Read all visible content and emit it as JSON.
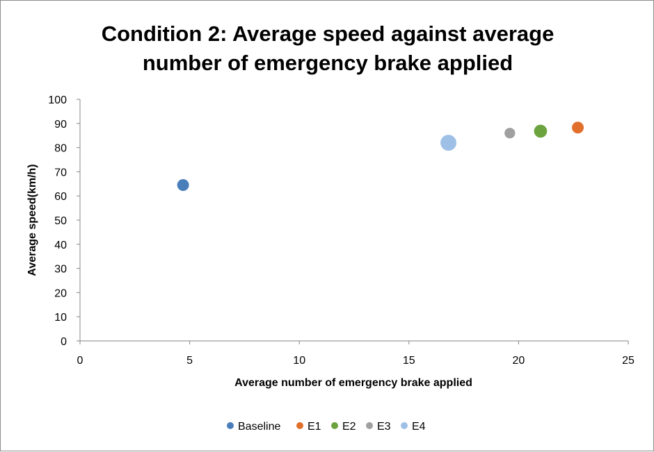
{
  "chart_data": {
    "type": "scatter",
    "title_lines": [
      "Condition 2: Average speed against average",
      "number of emergency brake applied"
    ],
    "xlabel": "Average number of emergency brake applied",
    "ylabel": "Average speed(km/h)",
    "xlim": [
      0,
      25
    ],
    "ylim": [
      0,
      100
    ],
    "x_ticks": [
      "0",
      "5",
      "10",
      "15",
      "20",
      "25"
    ],
    "y_ticks": [
      "0",
      "10",
      "20",
      "30",
      "40",
      "50",
      "60",
      "70",
      "80",
      "90",
      "100"
    ],
    "grid": false,
    "legend_position": "bottom",
    "series": [
      {
        "name": "Baseline",
        "color": "#4a7ebb",
        "x": 4.7,
        "y": 64.5,
        "marker_size": 1.0
      },
      {
        "name": "E1",
        "color": "#e1702d",
        "x": 22.7,
        "y": 88.3,
        "marker_size": 1.0
      },
      {
        "name": "E2",
        "color": "#6ca33e",
        "x": 21.0,
        "y": 86.8,
        "marker_size": 1.1
      },
      {
        "name": "E3",
        "color": "#a0a0a0",
        "x": 19.6,
        "y": 86.0,
        "marker_size": 0.9
      },
      {
        "name": "E4",
        "color": "#9fc0e6",
        "x": 16.8,
        "y": 82.0,
        "marker_size": 1.35
      }
    ]
  }
}
